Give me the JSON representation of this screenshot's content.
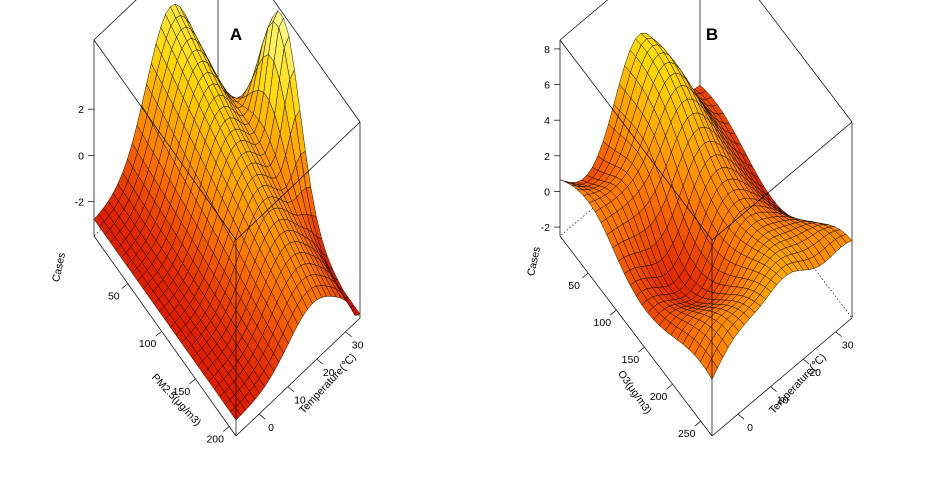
{
  "chart_data": [
    {
      "type": "surface",
      "title": "A",
      "xlabel": "PM2.5(μg/m3)",
      "ylabel": "Temperature(℃)",
      "zlabel": "Cases",
      "x_ticks": [
        50,
        100,
        150,
        200
      ],
      "y_ticks": [
        0,
        10,
        20,
        30
      ],
      "z_ticks": [
        -2,
        0,
        2
      ],
      "xlim": [
        0,
        210
      ],
      "ylim": [
        -8,
        35
      ],
      "zlim": [
        -3.5,
        5
      ],
      "colormap": [
        "#d40000",
        "#ff7a00",
        "#ffd700",
        "#ffff99"
      ],
      "surface_description": "Ridge along mid temperature declining with PM2.5; peak near low PM2.5 and high temperature"
    },
    {
      "type": "surface",
      "title": "B",
      "xlabel": "O3(μg/m3)",
      "ylabel": "Temperature(℃)",
      "zlabel": "Cases",
      "x_ticks": [
        50,
        100,
        150,
        200,
        250
      ],
      "y_ticks": [
        0,
        10,
        20,
        30
      ],
      "z_ticks": [
        -2,
        0,
        2,
        4,
        6,
        8
      ],
      "xlim": [
        0,
        270
      ],
      "ylim": [
        -8,
        35
      ],
      "zlim": [
        -2.5,
        8.5
      ],
      "colormap": [
        "#d40000",
        "#ff7a00",
        "#ffd700",
        "#ffff99"
      ],
      "surface_description": "Wavy surface with two peaks at low and high O3 and a ridge at mid temperature"
    }
  ]
}
